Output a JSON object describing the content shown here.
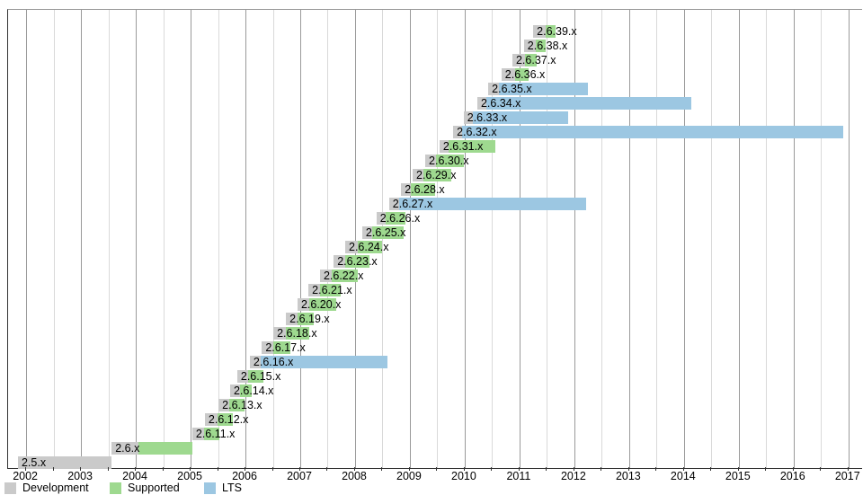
{
  "chart_data": {
    "type": "bar",
    "variant": "gantt-timeline",
    "grid": "on",
    "legend_position": "bottom-left",
    "axis": {
      "min": 2001.67,
      "max": 2017.25,
      "minor_tick_step": 0.5,
      "year_labels": [
        "2002",
        "2003",
        "2004",
        "2005",
        "2006",
        "2007",
        "2008",
        "2009",
        "2010",
        "2011",
        "2012",
        "2013",
        "2014",
        "2015",
        "2016",
        "2017"
      ]
    },
    "colors": {
      "development": "#cacaca",
      "supported": "#9ed98f",
      "lts": "#9cc7e2"
    },
    "legend": [
      {
        "key": "development",
        "label": "Development"
      },
      {
        "key": "supported",
        "label": "Supported"
      },
      {
        "key": "lts",
        "label": "LTS"
      }
    ],
    "rows": [
      {
        "label": "2.6.39.x",
        "segments": [
          {
            "type": "development",
            "start": 2011.25,
            "end": 2011.48
          },
          {
            "type": "supported",
            "start": 2011.48,
            "end": 2011.65
          }
        ]
      },
      {
        "label": "2.6.38.x",
        "segments": [
          {
            "type": "development",
            "start": 2011.08,
            "end": 2011.3
          },
          {
            "type": "supported",
            "start": 2011.3,
            "end": 2011.48
          }
        ]
      },
      {
        "label": "2.6.37.x",
        "segments": [
          {
            "type": "development",
            "start": 2010.87,
            "end": 2011.1
          },
          {
            "type": "supported",
            "start": 2011.1,
            "end": 2011.31
          }
        ]
      },
      {
        "label": "2.6.36.x",
        "segments": [
          {
            "type": "development",
            "start": 2010.67,
            "end": 2010.92
          },
          {
            "type": "supported",
            "start": 2010.92,
            "end": 2011.16
          }
        ]
      },
      {
        "label": "2.6.35.x",
        "segments": [
          {
            "type": "development",
            "start": 2010.43,
            "end": 2010.62
          },
          {
            "type": "lts",
            "start": 2010.62,
            "end": 2012.25
          }
        ]
      },
      {
        "label": "2.6.34.x",
        "segments": [
          {
            "type": "development",
            "start": 2010.23,
            "end": 2010.4
          },
          {
            "type": "lts",
            "start": 2010.4,
            "end": 2014.13
          }
        ]
      },
      {
        "label": "2.6.33.x",
        "segments": [
          {
            "type": "development",
            "start": 2009.98,
            "end": 2010.15
          },
          {
            "type": "lts",
            "start": 2010.15,
            "end": 2011.88
          }
        ]
      },
      {
        "label": "2.6.32.x",
        "segments": [
          {
            "type": "development",
            "start": 2009.79,
            "end": 2009.95
          },
          {
            "type": "lts",
            "start": 2009.95,
            "end": 2016.9
          }
        ]
      },
      {
        "label": "2.6.31.x",
        "segments": [
          {
            "type": "development",
            "start": 2009.54,
            "end": 2009.7
          },
          {
            "type": "supported",
            "start": 2009.7,
            "end": 2010.56
          }
        ]
      },
      {
        "label": "2.6.30.x",
        "segments": [
          {
            "type": "development",
            "start": 2009.28,
            "end": 2009.47
          },
          {
            "type": "supported",
            "start": 2009.47,
            "end": 2009.98
          }
        ]
      },
      {
        "label": "2.6.29.x",
        "segments": [
          {
            "type": "development",
            "start": 2009.05,
            "end": 2009.25
          },
          {
            "type": "supported",
            "start": 2009.25,
            "end": 2009.75
          }
        ]
      },
      {
        "label": "2.6.28.x",
        "segments": [
          {
            "type": "development",
            "start": 2008.84,
            "end": 2009.02
          },
          {
            "type": "supported",
            "start": 2009.02,
            "end": 2009.46
          }
        ]
      },
      {
        "label": "2.6.27.x",
        "segments": [
          {
            "type": "development",
            "start": 2008.62,
            "end": 2008.8
          },
          {
            "type": "lts",
            "start": 2008.8,
            "end": 2012.21
          }
        ]
      },
      {
        "label": "2.6.26.x",
        "segments": [
          {
            "type": "development",
            "start": 2008.39,
            "end": 2008.55
          },
          {
            "type": "supported",
            "start": 2008.55,
            "end": 2008.92
          }
        ]
      },
      {
        "label": "2.6.25.x",
        "segments": [
          {
            "type": "development",
            "start": 2008.13,
            "end": 2008.31
          },
          {
            "type": "supported",
            "start": 2008.31,
            "end": 2008.89
          }
        ]
      },
      {
        "label": "2.6.24.x",
        "segments": [
          {
            "type": "development",
            "start": 2007.82,
            "end": 2008.05
          },
          {
            "type": "supported",
            "start": 2008.05,
            "end": 2008.49
          }
        ]
      },
      {
        "label": "2.6.23.x",
        "segments": [
          {
            "type": "development",
            "start": 2007.61,
            "end": 2007.82
          },
          {
            "type": "supported",
            "start": 2007.82,
            "end": 2008.26
          }
        ]
      },
      {
        "label": "2.6.22.x",
        "segments": [
          {
            "type": "development",
            "start": 2007.36,
            "end": 2007.57
          },
          {
            "type": "supported",
            "start": 2007.57,
            "end": 2008.05
          }
        ]
      },
      {
        "label": "2.6.21.x",
        "segments": [
          {
            "type": "development",
            "start": 2007.15,
            "end": 2007.36
          },
          {
            "type": "supported",
            "start": 2007.36,
            "end": 2007.74
          }
        ]
      },
      {
        "label": "2.6.20.x",
        "segments": [
          {
            "type": "development",
            "start": 2006.95,
            "end": 2007.16
          },
          {
            "type": "supported",
            "start": 2007.16,
            "end": 2007.66
          }
        ]
      },
      {
        "label": "2.6.19.x",
        "segments": [
          {
            "type": "development",
            "start": 2006.74,
            "end": 2006.95
          },
          {
            "type": "supported",
            "start": 2006.95,
            "end": 2007.25
          }
        ]
      },
      {
        "label": "2.6.18.x",
        "segments": [
          {
            "type": "development",
            "start": 2006.51,
            "end": 2006.74
          },
          {
            "type": "supported",
            "start": 2006.74,
            "end": 2007.16
          }
        ]
      },
      {
        "label": "2.6.17.x",
        "segments": [
          {
            "type": "development",
            "start": 2006.3,
            "end": 2006.51
          },
          {
            "type": "supported",
            "start": 2006.51,
            "end": 2006.82
          }
        ]
      },
      {
        "label": "2.6.16.x",
        "segments": [
          {
            "type": "development",
            "start": 2006.08,
            "end": 2006.28
          },
          {
            "type": "lts",
            "start": 2006.28,
            "end": 2008.59
          }
        ]
      },
      {
        "label": "2.6.15.x",
        "segments": [
          {
            "type": "development",
            "start": 2005.85,
            "end": 2006.05
          },
          {
            "type": "supported",
            "start": 2006.05,
            "end": 2006.33
          }
        ]
      },
      {
        "label": "2.6.14.x",
        "segments": [
          {
            "type": "development",
            "start": 2005.72,
            "end": 2005.9
          },
          {
            "type": "supported",
            "start": 2005.9,
            "end": 2006.12
          }
        ]
      },
      {
        "label": "2.6.13.x",
        "segments": [
          {
            "type": "development",
            "start": 2005.51,
            "end": 2005.7
          },
          {
            "type": "supported",
            "start": 2005.7,
            "end": 2005.98
          }
        ]
      },
      {
        "label": "2.6.12.x",
        "segments": [
          {
            "type": "development",
            "start": 2005.26,
            "end": 2005.49
          },
          {
            "type": "supported",
            "start": 2005.49,
            "end": 2005.77
          }
        ]
      },
      {
        "label": "2.6.11.x",
        "segments": [
          {
            "type": "development",
            "start": 2005.03,
            "end": 2005.24
          },
          {
            "type": "supported",
            "start": 2005.24,
            "end": 2005.52
          }
        ]
      },
      {
        "label": "2.6.x",
        "segments": [
          {
            "type": "development",
            "start": 2003.56,
            "end": 2004.05
          },
          {
            "type": "supported",
            "start": 2004.05,
            "end": 2005.03
          }
        ]
      },
      {
        "label": "2.5.x",
        "segments": [
          {
            "type": "development",
            "start": 2001.85,
            "end": 2003.56
          }
        ]
      }
    ]
  }
}
